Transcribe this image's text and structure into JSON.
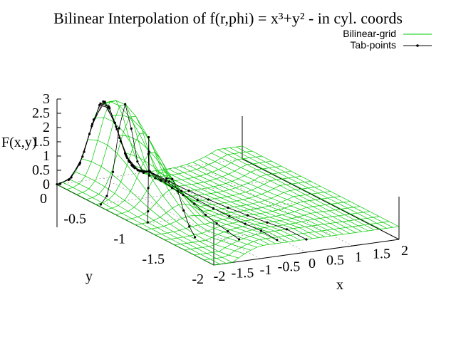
{
  "chart_data": {
    "type": "surface3d",
    "title": "Bilinear Interpolation of f(r,phi) = x³+y² - in cyl. coords",
    "xlabel": "x",
    "ylabel": "y",
    "zlabel": "F(x,y)",
    "xlim": [
      -2,
      2
    ],
    "ylim": [
      -2,
      0
    ],
    "zlim": [
      0,
      3
    ],
    "x_ticks": [
      "-2",
      "-1.5",
      "-1",
      "-0.5",
      "0",
      "0.5",
      "1",
      "1.5",
      "2"
    ],
    "y_ticks": [
      "-2",
      "-1.5",
      "-1",
      "-0.5",
      "0"
    ],
    "z_ticks": [
      "0",
      "0.5",
      "1",
      "1.5",
      "2",
      "2.5",
      "3"
    ],
    "legend_position": "top-right",
    "surface_peak": {
      "x": -1.0,
      "y": -0.2,
      "z": 3.0
    },
    "series": [
      {
        "name": "Bilinear-grid",
        "style": "green mesh",
        "color": "#00c800"
      },
      {
        "name": "Tab-points",
        "style": "black lines with points",
        "color": "#000000"
      }
    ]
  }
}
